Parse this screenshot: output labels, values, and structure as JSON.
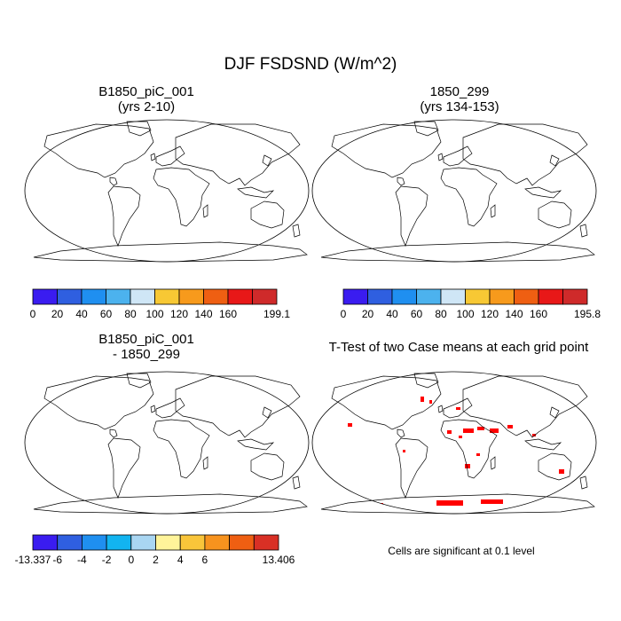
{
  "title": "DJF FSDSND (W/m^2)",
  "panels": [
    {
      "id": "case1",
      "title_line1": "B1850_piC_001",
      "title_line2": "(yrs 2-10)"
    },
    {
      "id": "case2",
      "title_line1": "1850_299",
      "title_line2": "(yrs 134-153)"
    },
    {
      "id": "diff",
      "title_line1": "B1850_piC_001",
      "title_line2": "- 1850_299"
    },
    {
      "id": "ttest",
      "title_line1": "T-Test of two Case means at each grid point",
      "title_line2": ""
    }
  ],
  "colorbars": [
    {
      "id": "cb1",
      "colors": [
        "#3a1cf0",
        "#2f5fe0",
        "#1f8ff0",
        "#4cb2ee",
        "#cfe6f6",
        "#f7c834",
        "#f79a1c",
        "#ef5f12",
        "#e81818",
        "#cf2a2a"
      ],
      "labels": [
        "0",
        "20",
        "40",
        "60",
        "80",
        "100",
        "120",
        "140",
        "160",
        "199.1"
      ]
    },
    {
      "id": "cb2",
      "colors": [
        "#3a1cf0",
        "#2f5fe0",
        "#1f8ff0",
        "#4cb2ee",
        "#cfe6f6",
        "#f7c834",
        "#f79a1c",
        "#ef5f12",
        "#e81818",
        "#cf2a2a"
      ],
      "labels": [
        "0",
        "20",
        "40",
        "60",
        "80",
        "100",
        "120",
        "140",
        "160",
        "195.8"
      ]
    },
    {
      "id": "cb3",
      "colors": [
        "#3a1cf0",
        "#2f5fe0",
        "#1f8ff0",
        "#12b4f0",
        "#a9d6f2",
        "#fff49a",
        "#f9c53a",
        "#f7931e",
        "#ef5f12",
        "#d93025"
      ],
      "labels": [
        "-13.337",
        "-6",
        "-4",
        "-2",
        "0",
        "2",
        "4",
        "6",
        "13.406"
      ]
    }
  ],
  "significance_note": "Cells are significant at 0.1 level",
  "significance_color": "#ff0000",
  "land_outline_color": "#000000"
}
